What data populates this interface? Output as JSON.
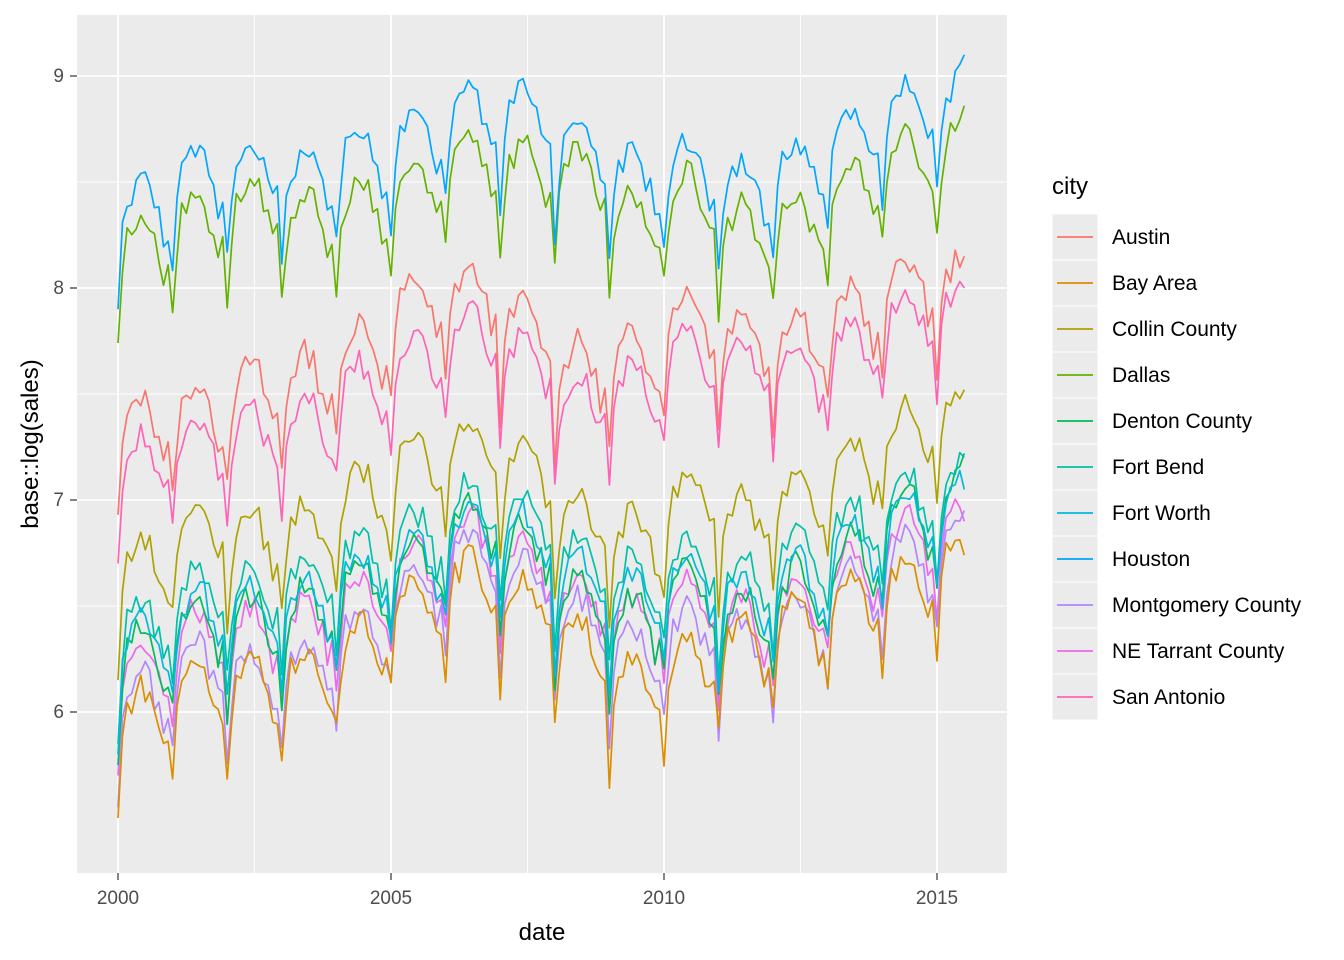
{
  "chart_data": {
    "type": "line",
    "xlabel": "date",
    "ylabel": "base::log(sales)",
    "x_ticks": [
      "2000",
      "2005",
      "2010",
      "2015"
    ],
    "y_ticks": [
      "6",
      "7",
      "8",
      "9"
    ],
    "xlim": [
      "1999-07-01",
      "2015-10-01"
    ],
    "ylim": [
      5.25,
      9.25
    ],
    "grid": true,
    "background": "#ebebeb",
    "legend_title": "city",
    "legend_position": "right",
    "series": [
      {
        "name": "Austin",
        "color": "#f8766d",
        "start": 6.93,
        "end": 8.15,
        "offset": [
          0,
          7.35,
          7.45,
          7.5,
          7.65,
          7.85,
          7.9,
          7.75,
          7.55,
          7.6,
          7.8,
          7.7,
          7.7,
          7.8,
          7.95,
          7.95
        ]
      },
      {
        "name": "Bay Area",
        "color": "#db8e00",
        "start": 5.5,
        "end": 6.74,
        "offset": [
          0,
          6.05,
          6.05,
          6.1,
          6.25,
          6.45,
          6.55,
          6.45,
          6.25,
          6.05,
          6.15,
          6.25,
          6.35,
          6.45,
          6.55,
          6.65
        ]
      },
      {
        "name": "Collin County",
        "color": "#aea200",
        "start": 6.15,
        "end": 7.52,
        "offset": [
          0,
          6.8,
          6.75,
          6.8,
          6.95,
          7.1,
          7.2,
          7.1,
          6.85,
          6.75,
          6.95,
          6.85,
          6.95,
          7.1,
          7.25,
          7.3
        ]
      },
      {
        "name": "Dallas",
        "color": "#64b200",
        "start": 7.74,
        "end": 8.86,
        "offset": [
          0,
          8.25,
          8.3,
          8.25,
          8.3,
          8.4,
          8.55,
          8.5,
          8.45,
          8.25,
          8.35,
          8.2,
          8.25,
          8.4,
          8.55,
          8.6
        ]
      },
      {
        "name": "Denton County",
        "color": "#00bd5c",
        "start": 5.75,
        "end": 7.22,
        "offset": [
          0,
          6.35,
          6.35,
          6.4,
          6.5,
          6.65,
          6.8,
          6.7,
          6.45,
          6.35,
          6.5,
          6.4,
          6.5,
          6.65,
          6.85,
          6.95
        ]
      },
      {
        "name": "Fort Bend",
        "color": "#00c1a7",
        "start": 5.85,
        "end": 7.2,
        "offset": [
          0,
          6.5,
          6.5,
          6.55,
          6.65,
          6.75,
          6.9,
          6.85,
          6.65,
          6.55,
          6.65,
          6.55,
          6.65,
          6.8,
          6.95,
          7.0
        ]
      },
      {
        "name": "Fort Worth",
        "color": "#00bade",
        "start": 5.8,
        "end": 7.05,
        "offset": [
          0,
          6.4,
          6.4,
          6.45,
          6.55,
          6.65,
          6.8,
          6.75,
          6.55,
          6.45,
          6.55,
          6.45,
          6.55,
          6.7,
          6.85,
          6.9
        ]
      },
      {
        "name": "Houston",
        "color": "#00a6ff",
        "start": 7.9,
        "end": 9.1,
        "offset": [
          0,
          8.45,
          8.5,
          8.45,
          8.55,
          8.65,
          8.75,
          8.75,
          8.6,
          8.45,
          8.5,
          8.4,
          8.5,
          8.65,
          8.75,
          8.8
        ]
      },
      {
        "name": "Montgomery County",
        "color": "#b385ff",
        "start": 5.55,
        "end": 6.95,
        "offset": [
          0,
          6.15,
          6.1,
          6.15,
          6.3,
          6.5,
          6.65,
          6.55,
          6.35,
          6.2,
          6.3,
          6.25,
          6.35,
          6.5,
          6.65,
          6.75
        ]
      },
      {
        "name": "NE Tarrant County",
        "color": "#ef67eb",
        "start": 5.7,
        "end": 6.9,
        "offset": [
          0,
          6.3,
          6.3,
          6.35,
          6.45,
          6.6,
          6.75,
          6.65,
          6.45,
          6.35,
          6.45,
          6.35,
          6.45,
          6.6,
          6.75,
          6.8
        ]
      },
      {
        "name": "San Antonio",
        "color": "#ff63b6",
        "start": 6.7,
        "end": 8.0,
        "offset": [
          0,
          7.2,
          7.25,
          7.3,
          7.45,
          7.6,
          7.7,
          7.6,
          7.4,
          7.45,
          7.6,
          7.55,
          7.55,
          7.65,
          7.8,
          7.85
        ]
      }
    ]
  }
}
